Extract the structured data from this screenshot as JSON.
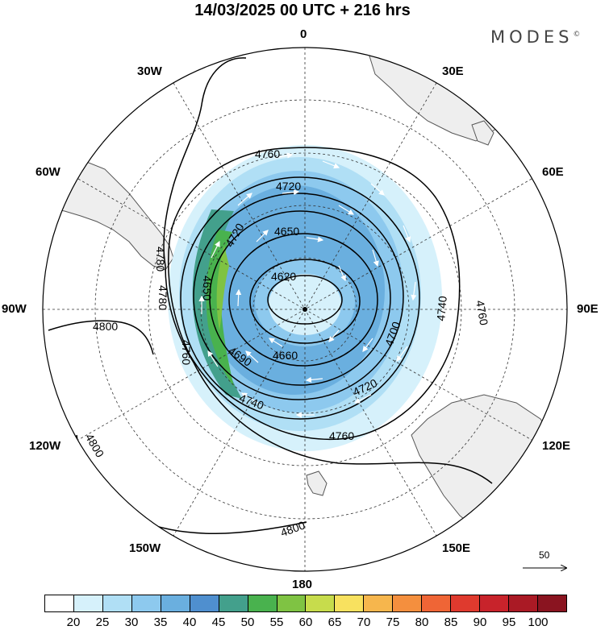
{
  "header": {
    "title": "14/03/2025  00 UTC  + 216 hrs",
    "brand": "MODES",
    "brand_mark": "©"
  },
  "map": {
    "projection": "polar stereographic, south pole centred",
    "longitude_labels": {
      "top": "0",
      "top_right": "30E",
      "right_upper": "60E",
      "right": "90E",
      "right_lower": "120E",
      "bottom_right": "150E",
      "bottom": "180",
      "bottom_left": "150W",
      "left_lower": "120W",
      "left": "90W",
      "left_upper": "60W",
      "top_left": "30W"
    },
    "contour_labels": [
      "4760",
      "4720",
      "4650",
      "4620",
      "4780",
      "4780",
      "4650",
      "4760",
      "4690",
      "4660",
      "4740",
      "4720",
      "4760",
      "4740",
      "4760",
      "4700",
      "4800",
      "4800",
      "4800",
      "4720"
    ],
    "colors": {
      "land": "#eeeeee",
      "coast": "#555555",
      "contour": "#000000",
      "wind_arrows": "#ffffff"
    }
  },
  "vector_reference": {
    "label": "50"
  },
  "colorbar": {
    "tick_labels": [
      "20",
      "25",
      "30",
      "35",
      "40",
      "45",
      "50",
      "55",
      "60",
      "65",
      "70",
      "75",
      "80",
      "85",
      "90",
      "95",
      "100"
    ],
    "colors": [
      "#ffffff",
      "#d6f1fb",
      "#b0dff5",
      "#8dc9ee",
      "#6aafdf",
      "#4f8fcf",
      "#43a08c",
      "#49b24e",
      "#7fc343",
      "#c7dc4c",
      "#f8e15f",
      "#f6b64d",
      "#f48f3e",
      "#ef6536",
      "#df3a2e",
      "#c8232b",
      "#aa1a25",
      "#8a1420"
    ]
  }
}
